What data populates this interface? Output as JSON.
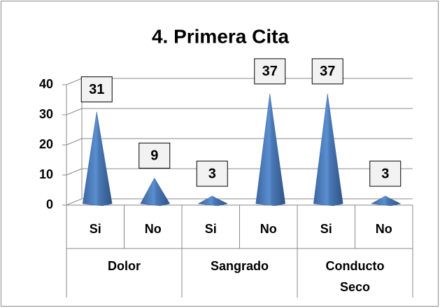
{
  "chart_data": {
    "type": "pyramid",
    "title": "4. Primera Cita",
    "categories": [
      "Si",
      "No",
      "Si",
      "No",
      "Si",
      "No"
    ],
    "groups": [
      "Dolor",
      "Sangrado",
      "Conducto Seco"
    ],
    "values": [
      31,
      9,
      3,
      37,
      37,
      3
    ],
    "color": "#4f81bd",
    "ylim": [
      0,
      40
    ],
    "yticks": [
      0,
      10,
      20,
      30,
      40
    ],
    "grid": true
  }
}
